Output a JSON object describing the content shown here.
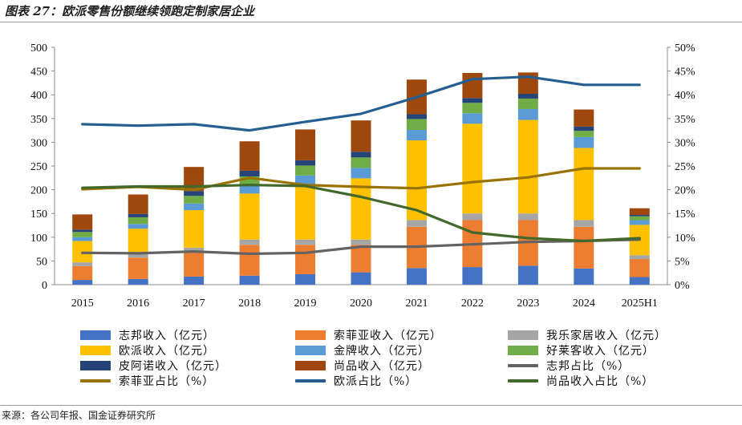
{
  "title": "图表 27：欧派零售份额继续领跑定制家居企业",
  "source": "来源：各公司年报、国金证券研究所",
  "chart_data": {
    "type": "bar",
    "stacked": true,
    "categories": [
      "2015",
      "2016",
      "2017",
      "2018",
      "2019",
      "2020",
      "2021",
      "2022",
      "2023",
      "2024",
      "2025H1"
    ],
    "y_left": {
      "ylim": [
        0,
        500
      ],
      "ticks": [
        "0",
        "50",
        "100",
        "150",
        "200",
        "250",
        "300",
        "350",
        "400",
        "450",
        "500"
      ]
    },
    "y_right": {
      "ylim": [
        0,
        50
      ],
      "ticks": [
        "0%",
        "5%",
        "10%",
        "15%",
        "20%",
        "25%",
        "30%",
        "35%",
        "40%",
        "45%",
        "50%"
      ]
    },
    "grid": false,
    "series": [
      {
        "name": "志邦收入（亿元）",
        "kind": "bar",
        "color": "#4472C4",
        "values": [
          10,
          12,
          17,
          19,
          22,
          26,
          35,
          37,
          40,
          34,
          16
        ]
      },
      {
        "name": "索菲亚收入（亿元）",
        "kind": "bar",
        "color": "#ED7D31",
        "values": [
          29,
          45,
          52,
          65,
          62,
          58,
          87,
          99,
          96,
          88,
          38
        ]
      },
      {
        "name": "我乐家居收入（亿元）",
        "kind": "bar",
        "color": "#A5A5A5",
        "values": [
          8,
          8,
          9,
          11,
          11,
          11,
          14,
          14,
          14,
          14,
          8
        ]
      },
      {
        "name": "欧派收入（亿元）",
        "kind": "bar",
        "color": "#FFC000",
        "values": [
          45,
          53,
          79,
          97,
          116,
          129,
          168,
          189,
          197,
          152,
          64
        ]
      },
      {
        "name": "金牌收入（亿元）",
        "kind": "bar",
        "color": "#5B9BD5",
        "values": [
          8,
          10,
          14,
          17,
          19,
          22,
          22,
          22,
          23,
          23,
          10
        ]
      },
      {
        "name": "好莱客收入（亿元）",
        "kind": "bar",
        "color": "#70AD47",
        "values": [
          11,
          14,
          16,
          19,
          21,
          22,
          23,
          22,
          22,
          13,
          8
        ]
      },
      {
        "name": "皮阿诺收入（亿元）",
        "kind": "bar",
        "color": "#264478",
        "values": [
          5,
          7,
          10,
          12,
          11,
          12,
          10,
          10,
          10,
          9,
          3
        ]
      },
      {
        "name": "尚品收入（亿元）",
        "kind": "bar",
        "color": "#9E480E",
        "values": [
          32,
          41,
          51,
          62,
          65,
          66,
          73,
          53,
          45,
          36,
          14
        ]
      },
      {
        "name": "志邦占比（%）",
        "kind": "line",
        "color": "#636363",
        "values": [
          6.7,
          6.6,
          7.0,
          6.5,
          6.7,
          8.0,
          8.0,
          8.5,
          9.0,
          9.2,
          9.5
        ]
      },
      {
        "name": "索菲亚占比（%）",
        "kind": "line",
        "color": "#997300",
        "values": [
          20.1,
          20.6,
          20.0,
          22.5,
          21.0,
          20.6,
          20.3,
          21.6,
          22.6,
          24.5,
          24.5
        ]
      },
      {
        "name": "欧派占比（%）",
        "kind": "line",
        "color": "#255E91",
        "values": [
          33.8,
          33.5,
          33.8,
          32.5,
          34.3,
          36.0,
          39.5,
          43.3,
          43.8,
          42.1,
          42.1
        ]
      },
      {
        "name": "尚品收入占比（%）",
        "kind": "line",
        "color": "#43682B",
        "values": [
          20.4,
          20.7,
          20.7,
          21.0,
          20.8,
          18.5,
          15.7,
          11.0,
          9.8,
          9.2,
          9.8
        ]
      }
    ]
  },
  "legend_layout": [
    {
      "series": 0,
      "col": 0,
      "row": 0
    },
    {
      "series": 1,
      "col": 1,
      "row": 0
    },
    {
      "series": 2,
      "col": 2,
      "row": 0
    },
    {
      "series": 3,
      "col": 0,
      "row": 1
    },
    {
      "series": 4,
      "col": 1,
      "row": 1
    },
    {
      "series": 5,
      "col": 2,
      "row": 1
    },
    {
      "series": 6,
      "col": 0,
      "row": 2
    },
    {
      "series": 7,
      "col": 1,
      "row": 2
    },
    {
      "series": 8,
      "col": 2,
      "row": 2
    },
    {
      "series": 9,
      "col": 0,
      "row": 3
    },
    {
      "series": 10,
      "col": 1,
      "row": 3
    },
    {
      "series": 11,
      "col": 2,
      "row": 3
    }
  ]
}
